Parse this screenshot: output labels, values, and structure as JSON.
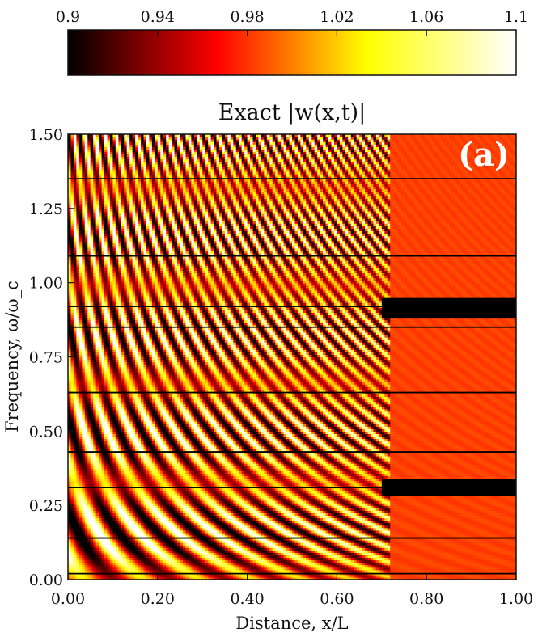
{
  "chart_data": {
    "type": "heatmap",
    "title": "Exact |w(x,t)|",
    "panel_label": "(a)",
    "xlabel": "Distance, x/L",
    "ylabel": "Frequency, ω/ω_c",
    "xlim": [
      0,
      1
    ],
    "ylim": [
      0,
      1.5
    ],
    "x_ticks": [
      0,
      0.2,
      0.4,
      0.6,
      0.8,
      1.0
    ],
    "x_tick_labels": [
      "0.00",
      "0.20",
      "0.40",
      "0.60",
      "0.80",
      "1.00"
    ],
    "y_ticks": [
      0,
      0.25,
      0.5,
      0.75,
      1.0,
      1.25,
      1.5
    ],
    "y_tick_labels": [
      "0.00",
      "0.25",
      "0.50",
      "0.75",
      "1.00",
      "1.25",
      "1.50"
    ],
    "colorbar": {
      "range": [
        0.9,
        1.1
      ],
      "ticks": [
        0.9,
        0.94,
        0.98,
        1.02,
        1.06,
        1.1
      ],
      "tick_labels": [
        "0.9",
        "0.94",
        "0.98",
        "1.02",
        "1.06",
        "1.1"
      ],
      "colormap": "hot",
      "colors": [
        "#000000",
        "#ff0000",
        "#ffff00",
        "#ffffff"
      ]
    },
    "background_value": 1.0,
    "boundary_x": 0.72,
    "resonance_lines": [
      0.02,
      0.14,
      0.31,
      0.43,
      0.63,
      0.85,
      0.92,
      1.09,
      1.35
    ],
    "stopbands": [
      [
        0.28,
        0.34
      ],
      [
        0.88,
        0.95
      ]
    ],
    "grid": false
  }
}
